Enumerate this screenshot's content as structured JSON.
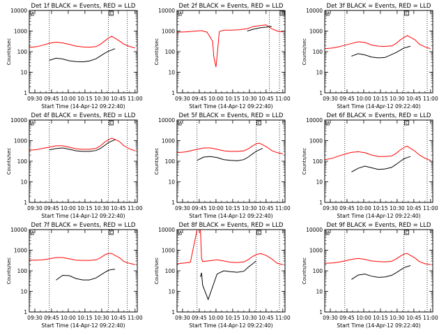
{
  "figure": {
    "x_ticks": [
      "09:30",
      "09:45",
      "10:00",
      "10:15",
      "10:30",
      "10:45",
      "11:00"
    ],
    "y_ticks": [
      "1",
      "10",
      "100",
      "1000",
      "10000"
    ],
    "ylabel": "Counts/sec",
    "xlabel": "Start Time (14-Apr-12 09:22:40)",
    "marker_a": "A",
    "marker_c": "C"
  },
  "chart_data": [
    {
      "type": "line",
      "title": "Det 1f BLACK = Events, RED = LLD",
      "y_scale": "log",
      "ylim": [
        1,
        10000
      ],
      "xlim": [
        "09:25",
        "11:02"
      ],
      "dotted_vlines": [
        "09:43",
        "10:36",
        "10:53"
      ],
      "x": [
        "09:25",
        "09:32",
        "09:37",
        "09:43",
        "09:49",
        "09:55",
        "10:01",
        "10:07",
        "10:13",
        "10:19",
        "10:25",
        "10:29",
        "10:33",
        "10:36",
        "10:39",
        "10:42",
        "10:46",
        "10:50",
        "10:55",
        "11:00"
      ],
      "series": [
        {
          "name": "BLACK = Events",
          "color": "#000000",
          "values": [
            null,
            null,
            null,
            38,
            48,
            44,
            36,
            33,
            32,
            35,
            45,
            62,
            85,
            105,
            120,
            140,
            null,
            null,
            null,
            null
          ]
        },
        {
          "name": "RED = LLD",
          "color": "#ff0000",
          "values": [
            160,
            175,
            205,
            255,
            290,
            265,
            225,
            185,
            170,
            165,
            175,
            230,
            340,
            450,
            560,
            450,
            330,
            230,
            180,
            150
          ]
        }
      ]
    },
    {
      "type": "line",
      "title": "Det 2f BLACK = Events, RED = LLD",
      "y_scale": "log",
      "ylim": [
        1,
        10000
      ],
      "xlim": [
        "09:25",
        "11:02"
      ],
      "dotted_vlines": [
        "10:48",
        "10:57"
      ],
      "x": [
        "09:25",
        "09:33",
        "09:40",
        "09:47",
        "09:52",
        "09:57",
        "09:58",
        "10:00",
        "10:01",
        "10:03",
        "10:07",
        "10:13",
        "10:20",
        "10:28",
        "10:34",
        "10:40",
        "10:45",
        "10:50",
        "10:55",
        "11:00"
      ],
      "series": [
        {
          "name": "BLACK = Events",
          "color": "#000000",
          "values": [
            null,
            null,
            null,
            null,
            null,
            null,
            null,
            null,
            null,
            null,
            null,
            null,
            null,
            1000,
            1250,
            1450,
            1550,
            1700,
            null,
            null
          ]
        },
        {
          "name": "RED = LLD",
          "color": "#ff0000",
          "values": [
            880,
            920,
            980,
            1050,
            880,
            320,
            60,
            18,
            60,
            950,
            1100,
            1100,
            1150,
            1300,
            1700,
            1850,
            2000,
            1300,
            1000,
            900
          ]
        }
      ]
    },
    {
      "type": "line",
      "title": "Det 3f BLACK = Events, RED = LLD",
      "y_scale": "log",
      "ylim": [
        1,
        10000
      ],
      "xlim": [
        "09:25",
        "11:02"
      ],
      "dotted_vlines": [
        "09:43",
        "10:36",
        "10:57"
      ],
      "x": [
        "09:25",
        "09:32",
        "09:37",
        "09:43",
        "09:49",
        "09:55",
        "10:01",
        "10:07",
        "10:13",
        "10:19",
        "10:25",
        "10:29",
        "10:33",
        "10:36",
        "10:39",
        "10:42",
        "10:46",
        "10:50",
        "10:55",
        "11:00"
      ],
      "series": [
        {
          "name": "BLACK = Events",
          "color": "#000000",
          "values": [
            null,
            null,
            null,
            null,
            60,
            80,
            70,
            55,
            50,
            52,
            72,
            90,
            120,
            150,
            165,
            185,
            null,
            null,
            null,
            null
          ]
        },
        {
          "name": "RED = LLD",
          "color": "#ff0000",
          "values": [
            140,
            150,
            170,
            205,
            250,
            300,
            280,
            210,
            185,
            180,
            190,
            250,
            380,
            480,
            600,
            500,
            380,
            230,
            170,
            140
          ]
        }
      ]
    },
    {
      "type": "line",
      "title": "Det 4f BLACK = Events, RED = LLD",
      "y_scale": "log",
      "ylim": [
        1,
        10000
      ],
      "xlim": [
        "09:25",
        "11:02"
      ],
      "dotted_vlines": [
        "09:43",
        "10:36",
        "10:53"
      ],
      "x": [
        "09:25",
        "09:32",
        "09:37",
        "09:43",
        "09:49",
        "09:55",
        "10:01",
        "10:07",
        "10:13",
        "10:19",
        "10:25",
        "10:29",
        "10:33",
        "10:36",
        "10:39",
        "10:42",
        "10:46",
        "10:50",
        "10:55",
        "11:00"
      ],
      "series": [
        {
          "name": "BLACK = Events",
          "color": "#000000",
          "values": [
            null,
            null,
            null,
            360,
            410,
            440,
            380,
            320,
            300,
            300,
            330,
            420,
            600,
            800,
            950,
            1100,
            null,
            null,
            null,
            null
          ]
        },
        {
          "name": "RED = LLD",
          "color": "#ff0000",
          "values": [
            340,
            370,
            420,
            480,
            560,
            560,
            480,
            400,
            380,
            380,
            420,
            560,
            880,
            1100,
            1300,
            1150,
            900,
            560,
            400,
            320
          ]
        }
      ]
    },
    {
      "type": "line",
      "title": "Det 5f BLACK = Events, RED = LLD",
      "y_scale": "log",
      "ylim": [
        1,
        10000
      ],
      "xlim": [
        "09:25",
        "11:02"
      ],
      "dotted_vlines": [
        "09:43",
        "10:36",
        "10:57"
      ],
      "x": [
        "09:25",
        "09:32",
        "09:37",
        "09:43",
        "09:49",
        "09:55",
        "10:01",
        "10:07",
        "10:13",
        "10:19",
        "10:25",
        "10:29",
        "10:33",
        "10:36",
        "10:39",
        "10:42",
        "10:46",
        "10:50",
        "10:55",
        "11:00"
      ],
      "series": [
        {
          "name": "BLACK = Events",
          "color": "#000000",
          "values": [
            null,
            null,
            null,
            110,
            160,
            170,
            150,
            120,
            110,
            105,
            120,
            160,
            230,
            300,
            360,
            420,
            null,
            null,
            null,
            null
          ]
        },
        {
          "name": "RED = LLD",
          "color": "#ff0000",
          "values": [
            260,
            280,
            320,
            380,
            440,
            440,
            380,
            320,
            300,
            300,
            320,
            400,
            560,
            700,
            760,
            620,
            480,
            330,
            260,
            230
          ]
        }
      ]
    },
    {
      "type": "line",
      "title": "Det 6f BLACK = Events, RED = LLD",
      "y_scale": "log",
      "ylim": [
        1,
        10000
      ],
      "xlim": [
        "09:25",
        "11:02"
      ],
      "dotted_vlines": [
        "09:43",
        "10:36",
        "10:57"
      ],
      "x": [
        "09:25",
        "09:32",
        "09:37",
        "09:43",
        "09:49",
        "09:55",
        "10:01",
        "10:07",
        "10:13",
        "10:19",
        "10:25",
        "10:29",
        "10:33",
        "10:36",
        "10:39",
        "10:42",
        "10:46",
        "10:50",
        "10:55",
        "11:00"
      ],
      "series": [
        {
          "name": "BLACK = Events",
          "color": "#000000",
          "values": [
            null,
            null,
            null,
            null,
            30,
            45,
            58,
            48,
            40,
            42,
            50,
            70,
            100,
            130,
            150,
            170,
            null,
            null,
            null,
            null
          ]
        },
        {
          "name": "RED = LLD",
          "color": "#ff0000",
          "values": [
            120,
            140,
            175,
            220,
            270,
            290,
            260,
            200,
            170,
            170,
            180,
            240,
            360,
            460,
            540,
            420,
            310,
            200,
            140,
            110
          ]
        }
      ]
    },
    {
      "type": "line",
      "title": "Det 7f BLACK = Events, RED = LLD",
      "y_scale": "log",
      "ylim": [
        1,
        10000
      ],
      "xlim": [
        "09:25",
        "11:02"
      ],
      "dotted_vlines": [
        "09:43",
        "10:36",
        "10:53"
      ],
      "x": [
        "09:25",
        "09:32",
        "09:37",
        "09:43",
        "09:49",
        "09:55",
        "10:01",
        "10:07",
        "10:13",
        "10:19",
        "10:25",
        "10:29",
        "10:33",
        "10:36",
        "10:39",
        "10:42",
        "10:46",
        "10:50",
        "10:55",
        "11:00"
      ],
      "series": [
        {
          "name": "BLACK = Events",
          "color": "#000000",
          "values": [
            null,
            null,
            null,
            null,
            35,
            60,
            58,
            42,
            36,
            36,
            45,
            62,
            85,
            105,
            115,
            120,
            null,
            null,
            null,
            null
          ]
        },
        {
          "name": "RED = LLD",
          "color": "#ff0000",
          "values": [
            330,
            330,
            340,
            380,
            440,
            440,
            380,
            330,
            320,
            320,
            340,
            430,
            600,
            700,
            700,
            560,
            430,
            280,
            230,
            200
          ]
        }
      ]
    },
    {
      "type": "line",
      "title": "Det 8f BLACK = Events, RED = LLD",
      "y_scale": "log",
      "ylim": [
        1,
        10000
      ],
      "xlim": [
        "09:25",
        "11:02"
      ],
      "dotted_vlines": [
        "09:43",
        "10:36",
        "10:57"
      ],
      "x": [
        "09:25",
        "09:32",
        "09:37",
        "09:43",
        "09:46",
        "09:47",
        "09:48",
        "09:53",
        "10:01",
        "10:07",
        "10:13",
        "10:19",
        "10:25",
        "10:29",
        "10:33",
        "10:36",
        "10:40",
        "10:45",
        "10:50",
        "10:55",
        "11:00"
      ],
      "series": [
        {
          "name": "BLACK = Events",
          "color": "#000000",
          "values": [
            null,
            null,
            null,
            null,
            50,
            80,
            20,
            4,
            70,
            100,
            90,
            85,
            95,
            150,
            220,
            300,
            null,
            null,
            null,
            null,
            null
          ]
        },
        {
          "name": "RED = LLD",
          "color": "#ff0000",
          "values": [
            220,
            240,
            260,
            10000,
            10000,
            420,
            280,
            300,
            340,
            300,
            260,
            250,
            270,
            350,
            500,
            600,
            700,
            560,
            380,
            230,
            200
          ]
        }
      ]
    },
    {
      "type": "line",
      "title": "Det 9f BLACK = Events, RED = LLD",
      "y_scale": "log",
      "ylim": [
        1,
        10000
      ],
      "xlim": [
        "09:25",
        "11:02"
      ],
      "dotted_vlines": [
        "09:43",
        "10:36",
        "10:57"
      ],
      "x": [
        "09:25",
        "09:32",
        "09:37",
        "09:43",
        "09:49",
        "09:55",
        "10:01",
        "10:07",
        "10:13",
        "10:19",
        "10:25",
        "10:29",
        "10:33",
        "10:36",
        "10:39",
        "10:42",
        "10:46",
        "10:50",
        "10:55",
        "11:00"
      ],
      "series": [
        {
          "name": "BLACK = Events",
          "color": "#000000",
          "values": [
            null,
            null,
            null,
            null,
            38,
            62,
            70,
            55,
            48,
            50,
            60,
            80,
            110,
            140,
            160,
            180,
            null,
            null,
            null,
            null
          ]
        },
        {
          "name": "RED = LLD",
          "color": "#ff0000",
          "values": [
            230,
            240,
            260,
            300,
            360,
            400,
            360,
            300,
            280,
            270,
            290,
            370,
            520,
            640,
            700,
            560,
            420,
            280,
            220,
            200
          ]
        }
      ]
    }
  ]
}
